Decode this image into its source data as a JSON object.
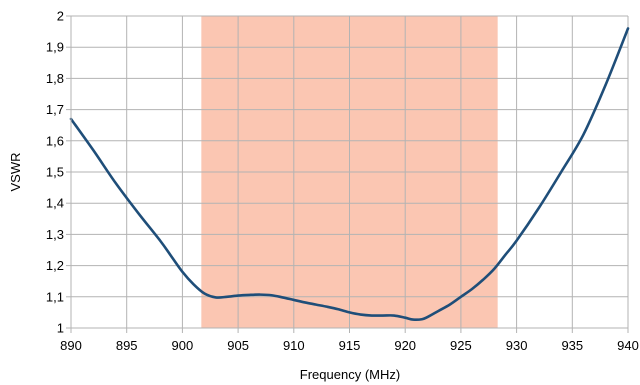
{
  "chart_data": {
    "type": "line",
    "title": "",
    "xlabel": "Frequency (MHz)",
    "ylabel": "VSWR",
    "xlim": [
      890,
      940
    ],
    "ylim": [
      1,
      2
    ],
    "grid": true,
    "legend": "none",
    "x_ticks": [
      "890",
      "895",
      "900",
      "905",
      "910",
      "915",
      "920",
      "925",
      "930",
      "935",
      "940"
    ],
    "y_ticks": [
      "1",
      "1,1",
      "1,2",
      "1,3",
      "1,4",
      "1,5",
      "1,6",
      "1,7",
      "1,8",
      "1,9",
      "2"
    ],
    "band": {
      "x0": 901.7,
      "x1": 928.3,
      "color": "#fbc6b2"
    },
    "line_color": "#1f4e79",
    "series": [
      {
        "x": [
          890,
          892,
          894,
          896,
          898,
          899,
          900,
          901,
          902,
          903,
          904,
          905,
          906,
          907,
          908,
          909,
          910,
          911,
          912,
          913,
          914,
          915,
          916,
          917,
          918,
          919,
          920,
          920.7,
          921.5,
          922,
          923,
          924,
          925,
          926,
          927,
          928,
          929,
          930,
          932,
          934,
          936,
          938,
          940
        ],
        "values": [
          1.67,
          1.57,
          1.465,
          1.37,
          1.28,
          1.23,
          1.18,
          1.14,
          1.11,
          1.098,
          1.1,
          1.104,
          1.106,
          1.107,
          1.105,
          1.098,
          1.09,
          1.082,
          1.075,
          1.068,
          1.06,
          1.05,
          1.043,
          1.04,
          1.04,
          1.04,
          1.033,
          1.027,
          1.028,
          1.035,
          1.055,
          1.075,
          1.1,
          1.125,
          1.155,
          1.19,
          1.235,
          1.28,
          1.385,
          1.5,
          1.62,
          1.78,
          1.96
        ]
      }
    ]
  }
}
